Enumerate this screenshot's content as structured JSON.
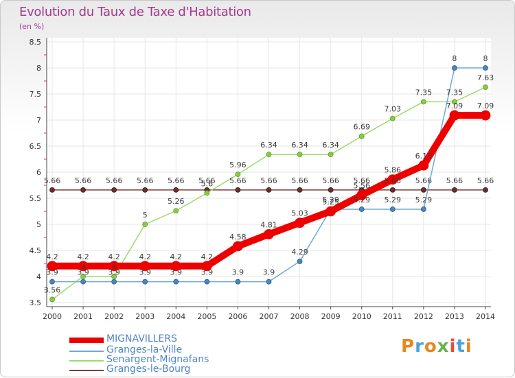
{
  "title": "Evolution du Taux de Taxe d'Habitation",
  "subtitle": "(en %)",
  "logo": "Proxiti",
  "colors": {
    "title": "#a13a8f",
    "mignavillers": "#ee0000",
    "granges_la_ville": "#6fa8d6",
    "senargent": "#99dd66",
    "granges_le_bourg": "#7a3f3f"
  },
  "chart_data": {
    "type": "line",
    "title": "Evolution du Taux de Taxe d'Habitation",
    "ylabel": "(en %)",
    "xlabel": "",
    "x": [
      "2000",
      "2001",
      "2002",
      "2003",
      "2004",
      "2005",
      "2006",
      "2007",
      "2008",
      "2009",
      "2010",
      "2011",
      "2012",
      "2013",
      "2014"
    ],
    "ylim": [
      3.5,
      8.5
    ],
    "yticks": [
      "3.5",
      "4",
      "4.5",
      "5",
      "5.5",
      "6",
      "6.5",
      "7",
      "7.5",
      "8",
      "8.5"
    ],
    "grid": true,
    "legend": "bottom-left",
    "series": [
      {
        "name": "MIGNAVILLERS",
        "values": [
          4.2,
          4.2,
          4.2,
          4.2,
          4.2,
          4.2,
          4.58,
          4.81,
          5.03,
          5.25,
          5.56,
          5.86,
          6.13,
          7.09,
          7.09
        ],
        "labels": [
          "4.2",
          "4.2",
          "4.2",
          "4.2",
          "4.2",
          "4.2",
          "4.58",
          "4.81",
          "5.03",
          "5.25",
          "5.56",
          "5.86",
          "6.13",
          "7.09",
          "7.09"
        ]
      },
      {
        "name": "Granges-la-Ville",
        "values": [
          3.9,
          3.9,
          3.9,
          3.9,
          3.9,
          3.9,
          3.9,
          3.9,
          4.29,
          5.29,
          5.29,
          5.29,
          5.29,
          8,
          8
        ],
        "labels": [
          "3.9",
          "3.9",
          "3.9",
          "3.9",
          "3.9",
          "3.9",
          "3.9",
          "3.9",
          "4.29",
          "5.29",
          "5.29",
          "5.29",
          "5.29",
          "8",
          "8"
        ]
      },
      {
        "name": "Senargent-Mignafans",
        "values": [
          3.56,
          4,
          4,
          5,
          5.26,
          5.6,
          5.96,
          6.34,
          6.34,
          6.34,
          6.69,
          7.03,
          7.35,
          7.35,
          7.63
        ],
        "labels": [
          "3.56",
          "4",
          "4",
          "5",
          "5.26",
          "5.6",
          "5.96",
          "6.34",
          "6.34",
          "6.34",
          "6.69",
          "7.03",
          "7.35",
          "7.35",
          "7.63"
        ]
      },
      {
        "name": "Granges-le-Bourg",
        "values": [
          5.66,
          5.66,
          5.66,
          5.66,
          5.66,
          5.66,
          5.66,
          5.66,
          5.66,
          5.66,
          5.66,
          5.66,
          5.66,
          5.66,
          5.66
        ],
        "labels": [
          "5.66",
          "5.66",
          "5.66",
          "5.66",
          "5.66",
          "5.66",
          "5.66",
          "5.66",
          "5.66",
          "5.66",
          "5.66",
          "5.66",
          "5.66",
          "5.66",
          "5.66"
        ]
      }
    ]
  }
}
